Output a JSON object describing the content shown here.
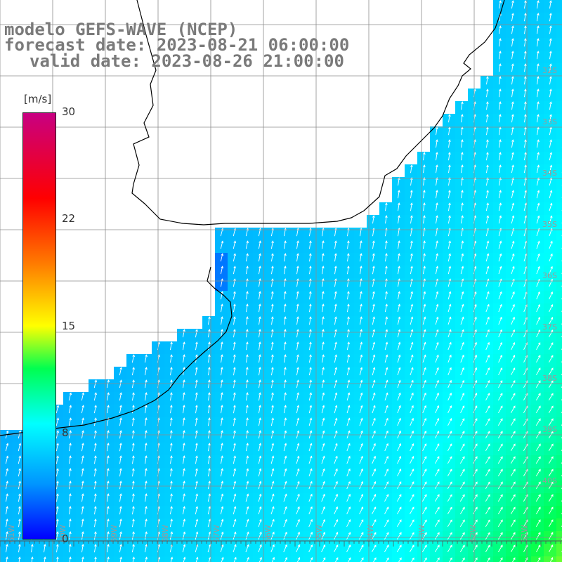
{
  "title": {
    "line1": "modelo GEFS-WAVE (NCEP)",
    "line2": "forecast date: 2023-08-21 06:00:00",
    "line3": "valid date: 2023-08-26 21:00:00"
  },
  "colorbar": {
    "unit": "[m/s]",
    "min": 0,
    "max": 30,
    "ticks": [
      "30",
      "22",
      "15",
      "8",
      "0"
    ]
  },
  "lat_labels": [
    "32S",
    "33S",
    "34S",
    "35S",
    "36S",
    "37S",
    "38S",
    "39S",
    "40S"
  ],
  "lon_labels": [
    "61W",
    "60W",
    "59W",
    "58W",
    "57W",
    "56W",
    "55W",
    "54W",
    "53W",
    "52W",
    "51W"
  ],
  "colors": {
    "land": "#ffffff",
    "grid": "#8c8c8c",
    "coast": "#000000",
    "arrow": "#ffffff",
    "label": "#7a7a7a"
  },
  "field": "wind speed (m/s) with direction arrows"
}
